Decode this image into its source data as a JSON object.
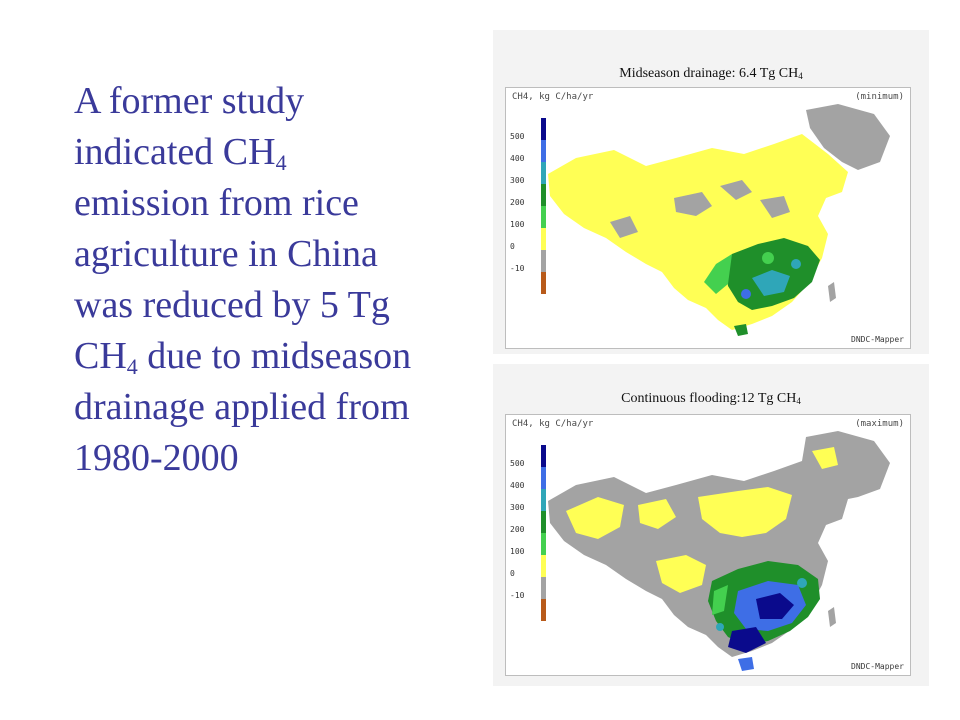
{
  "slide": {
    "body_text": {
      "line1": "A former study",
      "line2_pre": "indicated CH",
      "line2_sub": "4",
      "line3": "emission from rice",
      "line4": "agriculture in China",
      "line5": "was reduced by 5 Tg",
      "line6_pre": "CH",
      "line6_sub": "4",
      "line6_post": " due to midseason",
      "line7": "drainage applied from",
      "line8": "1980-2000"
    }
  },
  "maps": [
    {
      "caption_pre": "Midseason drainage: 6.4 Tg CH",
      "caption_sub": "4",
      "header_left": "CH4, kg C/ha/yr",
      "header_right": "(minimum)",
      "watermark": "DNDC-Mapper"
    },
    {
      "caption_pre": "Continuous flooding:12 Tg CH",
      "caption_sub": "4",
      "header_left": "CH4, kg C/ha/yr",
      "header_right": "(maximum)",
      "watermark": "DNDC-Mapper"
    }
  ],
  "legend": {
    "ticks": [
      "500",
      "400",
      "300",
      "200",
      "100",
      "0",
      "-10"
    ],
    "colors": [
      "#0a0a8c",
      "#3e6ee6",
      "#2fa6b8",
      "#1f8f2a",
      "#44d04f",
      "#ffff55",
      "#a3a3a3",
      "#b85a1a"
    ]
  },
  "colors": {
    "text": "#3a3a9a",
    "yellow": "#ffff55",
    "gray": "#a3a3a3",
    "green_dark": "#1f8f2a",
    "green_light": "#44d04f",
    "blue_dark": "#0a0a8c",
    "blue_mid": "#3e6ee6",
    "teal": "#2fa6b8"
  }
}
